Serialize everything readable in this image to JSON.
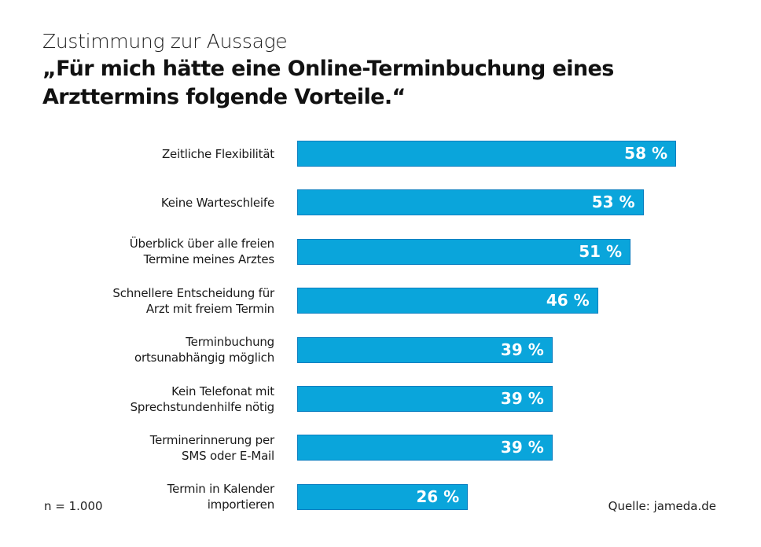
{
  "chart_data": {
    "type": "bar",
    "orientation": "horizontal",
    "title": "Zustimmung zur Aussage",
    "subtitle": "„Für mich hätte eine Online-Terminbuchung eines Arzttermins folgende Vorteile.“",
    "categories": [
      [
        "Zeitliche Flexibilität"
      ],
      [
        "Keine Warteschleife"
      ],
      [
        "Überblick über alle freien",
        "Termine meines Arztes"
      ],
      [
        "Schnellere Entscheidung für",
        "Arzt mit freiem Termin"
      ],
      [
        "Terminbuchung",
        "ortsunabhängig möglich"
      ],
      [
        "Kein Telefonat mit",
        "Sprechstundenhilfe nötig"
      ],
      [
        "Terminerinnerung per",
        "SMS oder E-Mail"
      ],
      [
        "Termin in Kalender",
        "importieren"
      ]
    ],
    "values": [
      58,
      53,
      51,
      46,
      39,
      39,
      39,
      26
    ],
    "value_labels": [
      "58 %",
      "53 %",
      "51 %",
      "46 %",
      "39 %",
      "39 %",
      "39 %",
      "26 %"
    ],
    "unit": "%",
    "xlim": [
      0,
      58
    ],
    "bar_color": "#0aa5db",
    "grid": false
  },
  "footer": {
    "sample": "n = 1.000",
    "source": "Quelle: jameda.de"
  }
}
